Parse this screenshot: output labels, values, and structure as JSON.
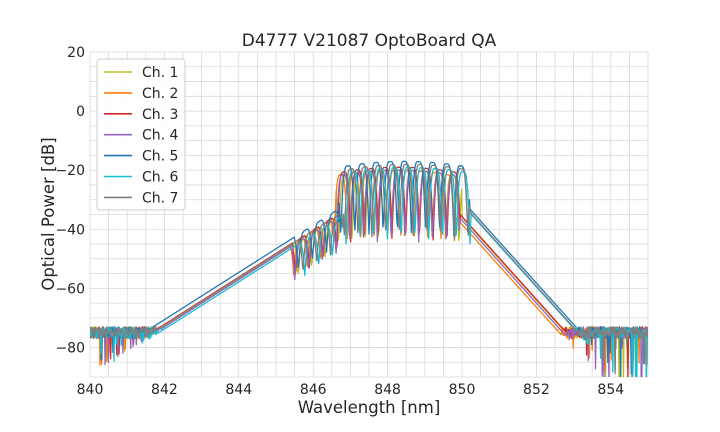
{
  "chart_data": {
    "type": "line",
    "title": "D4777 V21087 OptoBoard QA",
    "xlabel": "Wavelength [nm]",
    "ylabel": "Optical Power [dB]",
    "xlim": [
      840,
      855
    ],
    "ylim": [
      -90,
      20
    ],
    "xticks": [
      840,
      842,
      844,
      846,
      848,
      850,
      852,
      854
    ],
    "yticks": [
      -80,
      -60,
      -40,
      -20,
      0,
      20
    ],
    "x_minor_step": 0.5,
    "y_minor_step": 5,
    "grid": true,
    "legend_position": "top-left",
    "noise_floor_db": -75,
    "series": [
      {
        "name": "Ch. 1",
        "color": "#bcbd22",
        "center": 848.3,
        "peak": -20,
        "width": 3.4,
        "fringe_period": 0.36
      },
      {
        "name": "Ch. 2",
        "color": "#ff7f0e",
        "center": 848.18,
        "peak": -20,
        "width": 3.3,
        "fringe_period": 0.36
      },
      {
        "name": "Ch. 3",
        "color": "#d62728",
        "center": 848.3,
        "peak": -19,
        "width": 3.3,
        "fringe_period": 0.37
      },
      {
        "name": "Ch. 4",
        "color": "#9467bd",
        "center": 848.28,
        "peak": -20,
        "width": 3.3,
        "fringe_period": 0.37
      },
      {
        "name": "Ch. 5",
        "color": "#1f77b4",
        "center": 848.45,
        "peak": -17,
        "width": 3.5,
        "fringe_period": 0.38
      },
      {
        "name": "Ch. 6",
        "color": "#17becf",
        "center": 848.55,
        "peak": -19,
        "width": 3.4,
        "fringe_period": 0.37
      },
      {
        "name": "Ch. 7",
        "color": "#7f7f7f",
        "center": 848.5,
        "peak": -18,
        "width": 3.4,
        "fringe_period": 0.37
      }
    ]
  }
}
